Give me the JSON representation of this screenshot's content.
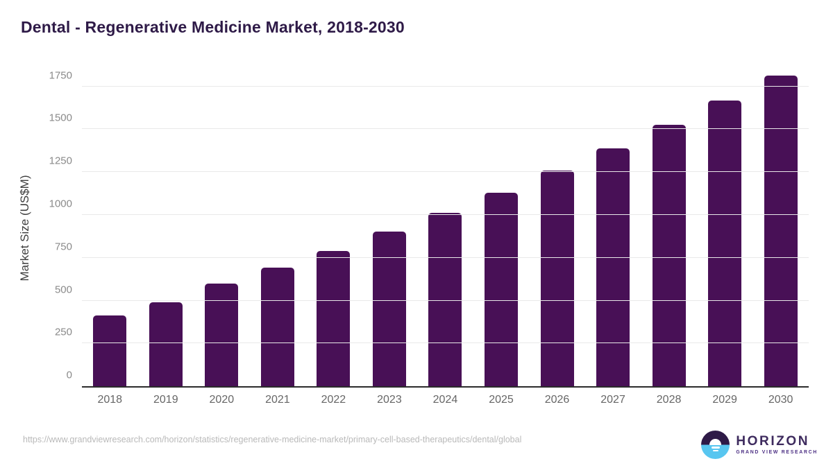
{
  "page": {
    "title": "Dental - Regenerative Medicine Market, 2018-2030"
  },
  "chart_data": {
    "type": "bar",
    "title": "Dental - Regenerative Medicine Market, 2018-2030",
    "categories": [
      "2018",
      "2019",
      "2020",
      "2021",
      "2022",
      "2023",
      "2024",
      "2025",
      "2026",
      "2027",
      "2028",
      "2029",
      "2030"
    ],
    "values": [
      411,
      489,
      599,
      691,
      789,
      901,
      1011,
      1129,
      1259,
      1389,
      1528,
      1668,
      1814
    ],
    "xlabel": "",
    "ylabel": "Market Size (US$M)",
    "ylim": [
      0,
      1850
    ],
    "yticks": [
      0,
      250,
      500,
      750,
      1000,
      1250,
      1500,
      1750
    ],
    "grid": true,
    "legend": "none",
    "bar_color": "#481056"
  },
  "footer": {
    "source_url": "https://www.grandviewresearch.com/horizon/statistics/regenerative-medicine-market/primary-cell-based-therapeutics/dental/global",
    "logo": {
      "name": "HORIZON",
      "subtitle": "GRAND VIEW RESEARCH"
    }
  },
  "colors": {
    "bar": "#481056",
    "title_text": "#2e1a47",
    "axis_line": "#2b2b2b",
    "gridline": "#e9e9e9",
    "ytick_text": "#8a8a8a",
    "xtick_text": "#666666",
    "source_text": "#b9b9b9",
    "logo_purple": "#3e2b5e",
    "logo_dark": "#2e1a47",
    "logo_blue": "#58c6f0"
  }
}
